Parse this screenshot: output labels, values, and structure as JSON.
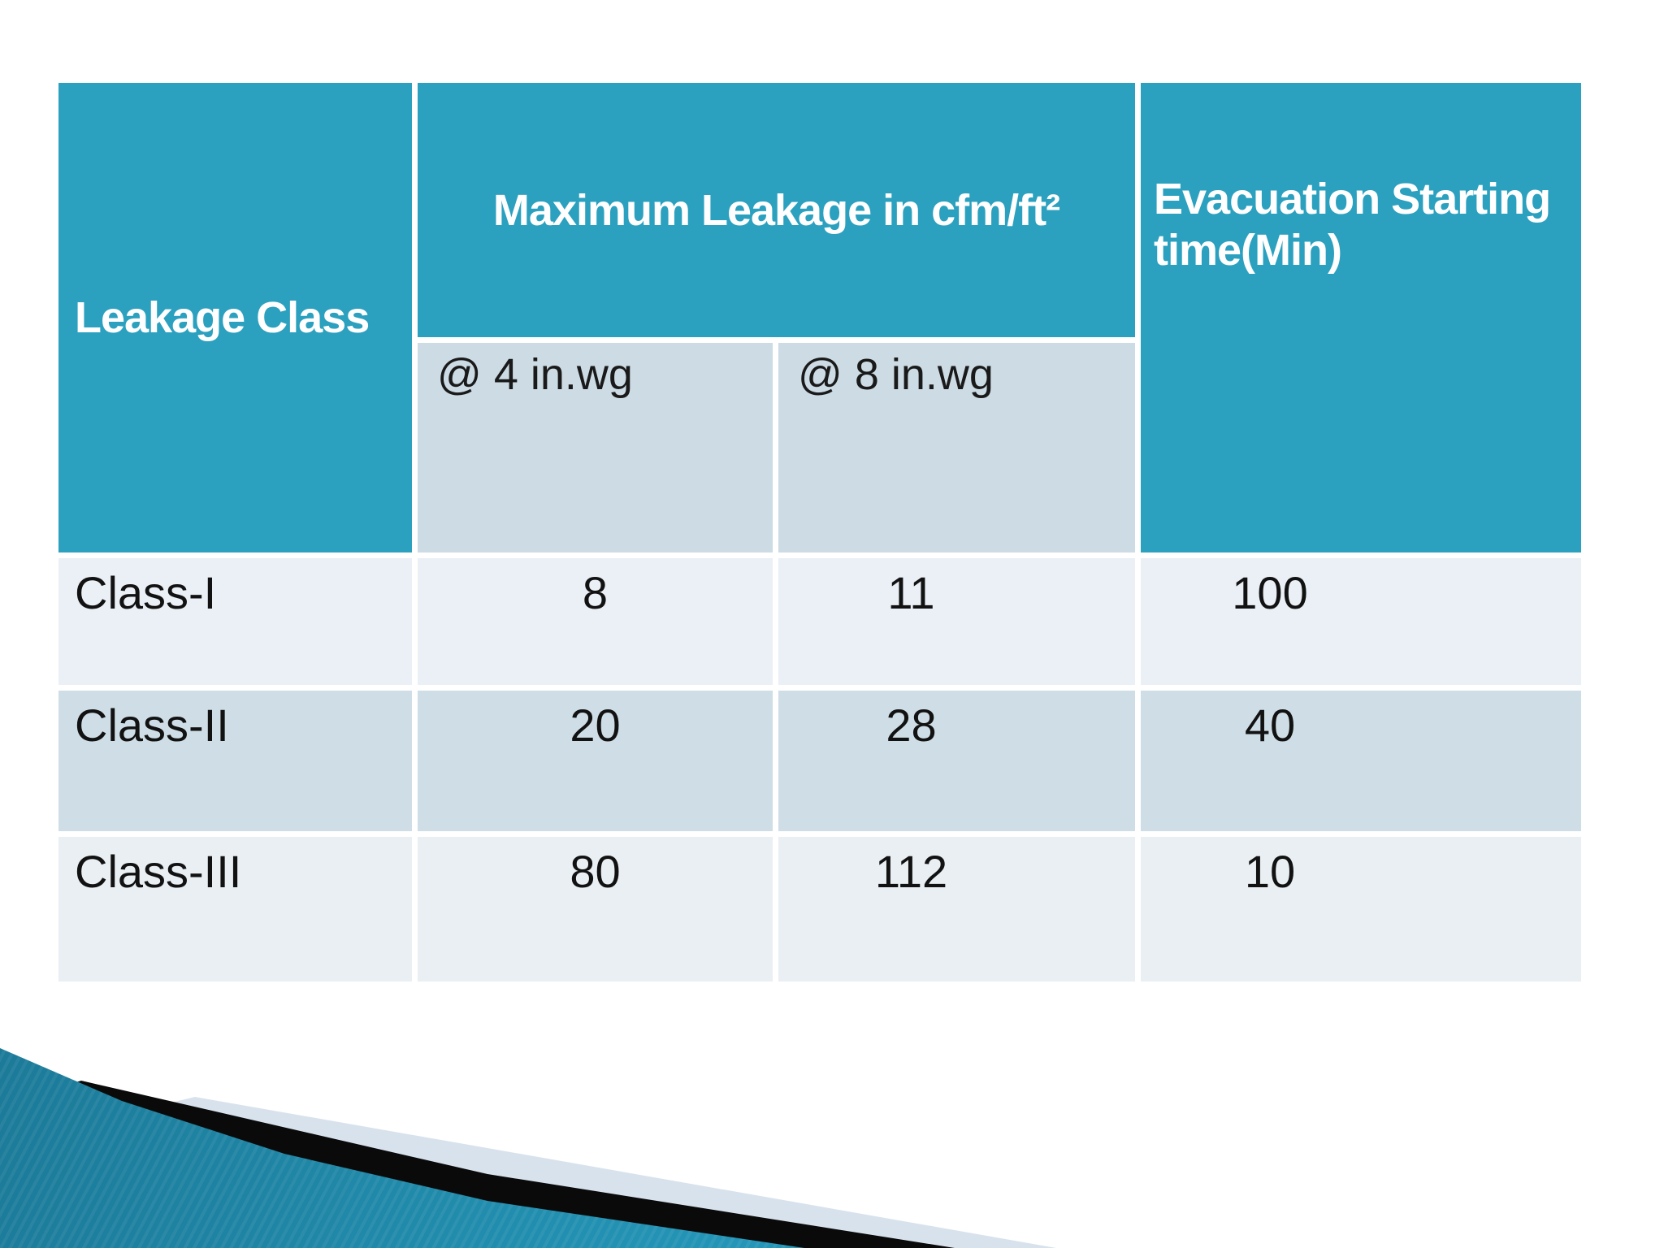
{
  "slide": {
    "table": {
      "headers": {
        "leakage_class": "Leakage Class",
        "max_leakage": "Maximum Leakage in cfm/ft²",
        "evacuation_line1": "Evacuation Starting",
        "evacuation_line2": "time(Min)",
        "sub_col_4": "@ 4 in.wg",
        "sub_col_8": "@ 8 in.wg"
      },
      "rows": [
        {
          "leakage_class": "Class-I",
          "at_4_inwg": "8",
          "at_8_inwg": "11",
          "evacuation_min": "100"
        },
        {
          "leakage_class": "Class-II",
          "at_4_inwg": "20",
          "at_8_inwg": "28",
          "evacuation_min": "40"
        },
        {
          "leakage_class": "Class-III",
          "at_4_inwg": "80",
          "at_8_inwg": "112",
          "evacuation_min": "10"
        }
      ],
      "colors": {
        "header_fill": "#2BA1BF",
        "subheader_fill": "#CCDBE4",
        "row_light_fill": "#EAF0F6",
        "row_medium_fill": "#CFDEE6",
        "row_light2_fill": "#E9EFF3",
        "header_text": "#FFFFFF",
        "body_text": "#121212",
        "grid_gap": "#FFFFFF"
      }
    },
    "decoration": {
      "pale_wedge_color": "#D8E2ED",
      "black_band_color": "#0A0A0A",
      "teal_wedge_gradient_from": "#19718E",
      "teal_wedge_gradient_to": "#35B0D2"
    }
  },
  "chart_data": {
    "type": "table",
    "title": "",
    "columns": [
      "Leakage Class",
      "Maximum Leakage in cfm/ft² @ 4 in.wg",
      "Maximum Leakage in cfm/ft² @ 8 in.wg",
      "Evacuation Starting time(Min)"
    ],
    "rows": [
      [
        "Class-I",
        8,
        11,
        100
      ],
      [
        "Class-II",
        20,
        28,
        40
      ],
      [
        "Class-III",
        80,
        112,
        10
      ]
    ]
  }
}
